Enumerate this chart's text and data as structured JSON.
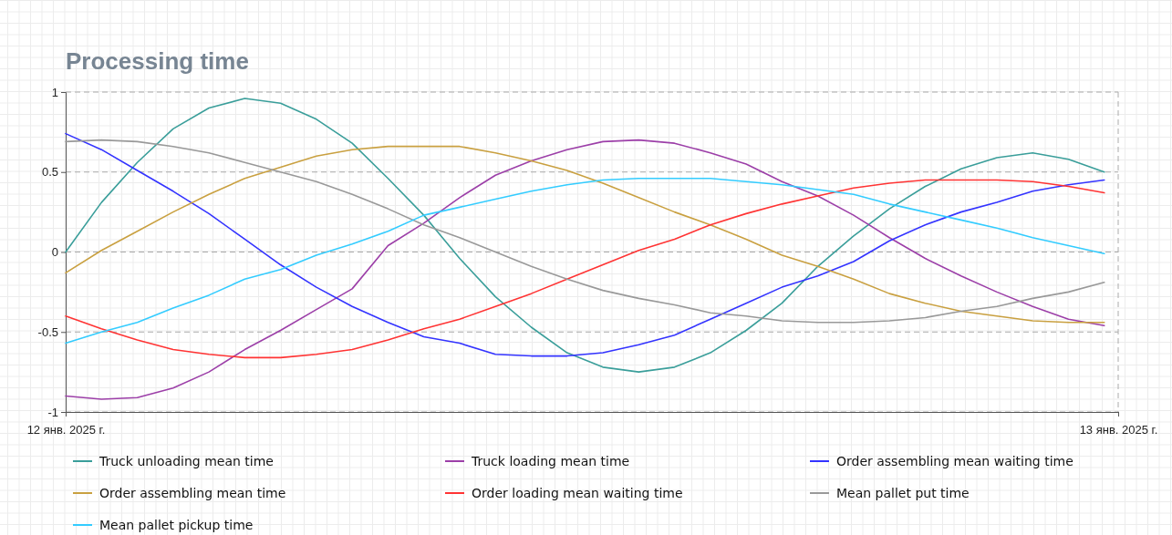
{
  "chart_data": {
    "type": "line",
    "title": "Processing time",
    "x": [
      "2025-01-12T00:00",
      "2025-01-12T00:49",
      "2025-01-12T01:38",
      "2025-01-12T02:27",
      "2025-01-12T03:16",
      "2025-01-12T04:05",
      "2025-01-12T04:54",
      "2025-01-12T05:43",
      "2025-01-12T06:32",
      "2025-01-12T07:21",
      "2025-01-12T08:10",
      "2025-01-12T08:59",
      "2025-01-12T09:48",
      "2025-01-12T10:37",
      "2025-01-12T11:26",
      "2025-01-12T12:15",
      "2025-01-12T13:04",
      "2025-01-12T13:53",
      "2025-01-12T14:42",
      "2025-01-12T15:31",
      "2025-01-12T16:20",
      "2025-01-12T17:09",
      "2025-01-12T17:58",
      "2025-01-12T18:47",
      "2025-01-12T19:36",
      "2025-01-12T20:25",
      "2025-01-12T21:14",
      "2025-01-12T22:03",
      "2025-01-12T22:52",
      "2025-01-12T23:41"
    ],
    "xlim": [
      "2025-01-12",
      "2025-01-13"
    ],
    "xticks": [
      {
        "value": "2025-01-12",
        "label": "12 янв. 2025 г."
      },
      {
        "value": "2025-01-13",
        "label": "13 янв. 2025 г."
      }
    ],
    "ylim": [
      -1,
      1
    ],
    "yticks": [
      -1,
      -0.5,
      0,
      0.5,
      1
    ],
    "grid": "y",
    "legend": "bottom",
    "marker": "none",
    "line_style": "solid",
    "series": [
      {
        "name": "Truck unloading mean time",
        "color": "#3a9e9a",
        "values": [
          0,
          0.31,
          0.56,
          0.77,
          0.9,
          0.96,
          0.93,
          0.83,
          0.68,
          0.46,
          0.23,
          -0.04,
          -0.28,
          -0.47,
          -0.63,
          -0.72,
          -0.75,
          -0.72,
          -0.63,
          -0.49,
          -0.32,
          -0.09,
          0.1,
          0.27,
          0.41,
          0.52,
          0.59,
          0.62,
          0.58,
          0.5
        ]
      },
      {
        "name": "Truck loading mean time",
        "color": "#9c3fa8",
        "values": [
          -0.9,
          -0.92,
          -0.91,
          -0.85,
          -0.75,
          -0.61,
          -0.49,
          -0.36,
          -0.23,
          0.04,
          0.18,
          0.34,
          0.48,
          0.57,
          0.64,
          0.69,
          0.7,
          0.68,
          0.62,
          0.55,
          0.44,
          0.35,
          0.23,
          0.09,
          -0.04,
          -0.15,
          -0.25,
          -0.34,
          -0.42,
          -0.46
        ]
      },
      {
        "name": "Order assembling mean waiting time",
        "color": "#3333ff",
        "values": [
          0.74,
          0.64,
          0.51,
          0.38,
          0.24,
          0.08,
          -0.08,
          -0.22,
          -0.34,
          -0.44,
          -0.53,
          -0.57,
          -0.64,
          -0.65,
          -0.65,
          -0.63,
          -0.58,
          -0.52,
          -0.42,
          -0.32,
          -0.22,
          -0.15,
          -0.06,
          0.07,
          0.17,
          0.25,
          0.31,
          0.38,
          0.42,
          0.45
        ]
      },
      {
        "name": "Order assembling mean time",
        "color": "#c9a040",
        "values": [
          -0.13,
          0.01,
          0.13,
          0.25,
          0.36,
          0.46,
          0.53,
          0.6,
          0.64,
          0.66,
          0.66,
          0.66,
          0.62,
          0.57,
          0.51,
          0.43,
          0.34,
          0.25,
          0.17,
          0.08,
          -0.02,
          -0.09,
          -0.17,
          -0.26,
          -0.32,
          -0.37,
          -0.4,
          -0.43,
          -0.44,
          -0.44
        ]
      },
      {
        "name": "Order loading mean waiting time",
        "color": "#ff3333",
        "values": [
          -0.4,
          -0.48,
          -0.55,
          -0.61,
          -0.64,
          -0.66,
          -0.66,
          -0.64,
          -0.61,
          -0.55,
          -0.48,
          -0.42,
          -0.34,
          -0.26,
          -0.17,
          -0.08,
          0.01,
          0.08,
          0.17,
          0.24,
          0.3,
          0.35,
          0.4,
          0.43,
          0.45,
          0.45,
          0.45,
          0.44,
          0.41,
          0.37
        ]
      },
      {
        "name": "Mean pallet put time",
        "color": "#999999",
        "values": [
          0.69,
          0.7,
          0.69,
          0.66,
          0.62,
          0.56,
          0.5,
          0.44,
          0.36,
          0.27,
          0.17,
          0.09,
          0,
          -0.09,
          -0.17,
          -0.24,
          -0.29,
          -0.33,
          -0.38,
          -0.4,
          -0.43,
          -0.44,
          -0.44,
          -0.43,
          -0.41,
          -0.37,
          -0.34,
          -0.29,
          -0.25,
          -0.19
        ]
      },
      {
        "name": "Mean pallet pickup time",
        "color": "#33ccff",
        "values": [
          -0.57,
          -0.5,
          -0.44,
          -0.35,
          -0.27,
          -0.17,
          -0.11,
          -0.02,
          0.05,
          0.13,
          0.23,
          0.28,
          0.33,
          0.38,
          0.42,
          0.45,
          0.46,
          0.46,
          0.46,
          0.44,
          0.42,
          0.39,
          0.36,
          0.3,
          0.25,
          0.2,
          0.15,
          0.09,
          0.04,
          -0.01
        ]
      }
    ]
  }
}
